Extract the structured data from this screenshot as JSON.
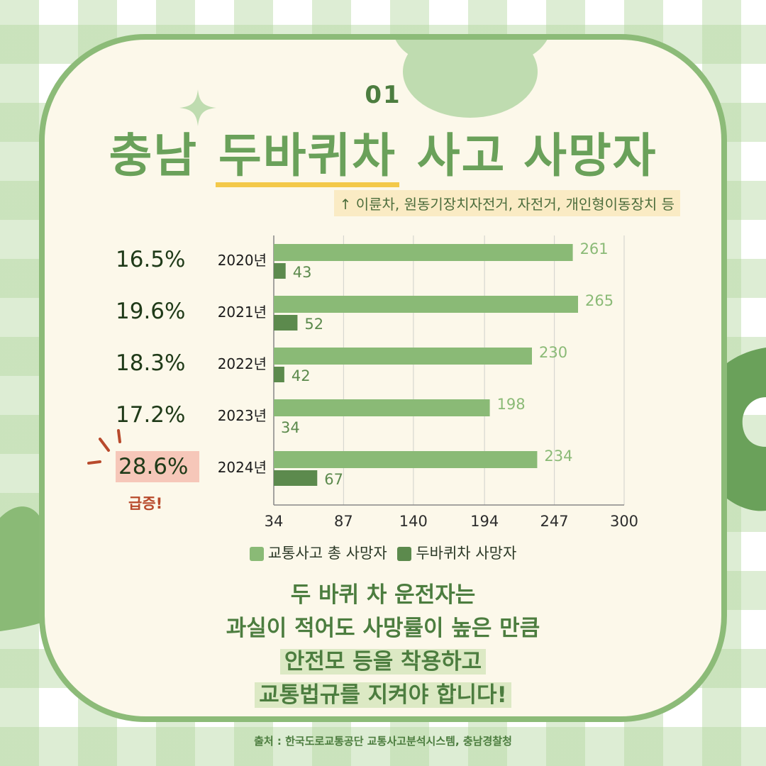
{
  "header": {
    "number": "01",
    "title_prefix": "충남 ",
    "title_highlight": "두바퀴차",
    "title_suffix": " 사고 사망자",
    "note": "↑ 이륜차, 원동기장치자전거, 자전거, 개인형이동장치 등"
  },
  "percentages": [
    "16.5%",
    "19.6%",
    "18.3%",
    "17.2%",
    "28.6%"
  ],
  "surge_label": "급증!",
  "chart_data": {
    "type": "bar",
    "orientation": "horizontal",
    "categories": [
      "2020년",
      "2021년",
      "2022년",
      "2023년",
      "2024년"
    ],
    "series": [
      {
        "name": "교통사고 총 사망자",
        "values": [
          261,
          265,
          230,
          198,
          234
        ],
        "color": "#8aba76"
      },
      {
        "name": "두바퀴차 사망자",
        "values": [
          43,
          52,
          42,
          34,
          67
        ],
        "color": "#5c8a4d"
      }
    ],
    "xlim": [
      34,
      300
    ],
    "xticks": [
      "34",
      "87",
      "140",
      "194",
      "247",
      "300"
    ],
    "grid": true,
    "legend": "bottom"
  },
  "message": {
    "lines": [
      "두 바퀴 차 운전자는",
      "과실이 적어도 사망률이 높은 만큼",
      "안전모 등을 착용하고",
      "교통법규를 지켜야 합니다!"
    ]
  },
  "source": "출처 : 한국도로교통공단 교통사고분석시스템, 충남경찰청",
  "colors": {
    "border": "#8cbb78",
    "card_bg": "#fcf8ea",
    "title": "#6aa15a",
    "underline": "#f3c94a",
    "total_bar": "#8aba76",
    "bike_bar": "#5c8a4d",
    "surge": "#b84a2c"
  }
}
